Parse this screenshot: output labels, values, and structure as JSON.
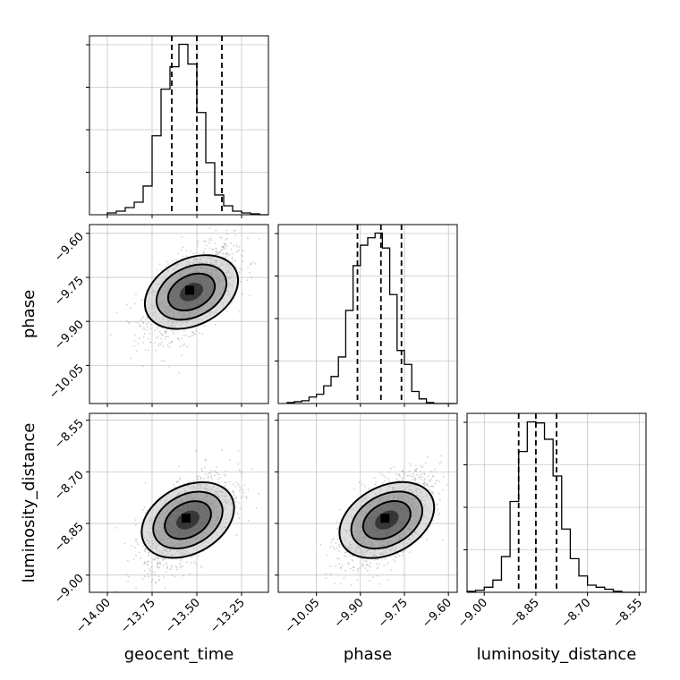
{
  "chart_data": {
    "type": "corner",
    "parameters": [
      {
        "key": "geocent_time",
        "label": "geocent_time",
        "range": [
          -14.1,
          -13.1
        ],
        "ticks": [
          -14.0,
          -13.75,
          -13.5,
          -13.25
        ],
        "tick_labels": [
          "−14.00",
          "−13.75",
          "−13.50",
          "−13.25"
        ],
        "quantiles": [
          -13.64,
          -13.5,
          -13.36
        ]
      },
      {
        "key": "phase",
        "label": "phase",
        "range": [
          -10.18,
          -9.57
        ],
        "ticks": [
          -10.05,
          -9.9,
          -9.75,
          -9.6
        ],
        "tick_labels": [
          "−10.05",
          "−9.90",
          "−9.75",
          "−9.60"
        ],
        "quantiles": [
          -9.91,
          -9.83,
          -9.76
        ]
      },
      {
        "key": "luminosity_distance",
        "label": "luminosity_distance",
        "range": [
          -9.05,
          -8.53
        ],
        "ticks": [
          -9.0,
          -8.85,
          -8.7,
          -8.55
        ],
        "tick_labels": [
          "−9.00",
          "−8.85",
          "−8.70",
          "−8.55"
        ],
        "quantiles": [
          -8.9,
          -8.85,
          -8.79
        ]
      }
    ],
    "histograms": [
      {
        "param": "geocent_time",
        "bin_edges": [
          -14.0,
          -13.95,
          -13.9,
          -13.85,
          -13.8,
          -13.75,
          -13.7,
          -13.65,
          -13.6,
          -13.55,
          -13.5,
          -13.45,
          -13.4,
          -13.35,
          -13.3,
          -13.25,
          -13.2,
          -13.15,
          -13.1
        ],
        "counts": [
          2,
          4,
          8,
          14,
          32,
          88,
          140,
          165,
          190,
          168,
          114,
          58,
          22,
          10,
          4,
          2,
          1,
          0
        ]
      },
      {
        "param": "phase",
        "bin_edges": [
          -10.15,
          -10.125,
          -10.1,
          -10.075,
          -10.05,
          -10.025,
          -10.0,
          -9.975,
          -9.95,
          -9.925,
          -9.9,
          -9.875,
          -9.85,
          -9.825,
          -9.8,
          -9.775,
          -9.75,
          -9.725,
          -9.7,
          -9.675,
          -9.65,
          -9.625,
          -9.6,
          -9.575
        ],
        "counts": [
          1,
          2,
          3,
          7,
          10,
          19,
          29,
          50,
          100,
          148,
          170,
          178,
          183,
          167,
          117,
          57,
          42,
          13,
          5,
          1,
          0,
          0,
          0
        ]
      },
      {
        "param": "luminosity_distance",
        "bin_edges": [
          -9.05,
          -9.025,
          -9.0,
          -8.975,
          -8.95,
          -8.925,
          -8.9,
          -8.875,
          -8.85,
          -8.825,
          -8.8,
          -8.775,
          -8.75,
          -8.725,
          -8.7,
          -8.675,
          -8.65,
          -8.625,
          -8.6,
          -8.575,
          -8.55
        ],
        "counts": [
          1,
          2,
          5,
          12,
          35,
          89,
          138,
          167,
          166,
          150,
          114,
          62,
          33,
          16,
          7,
          5,
          3,
          1,
          0,
          0
        ]
      }
    ],
    "scatter_2d": [
      {
        "x": "geocent_time",
        "y": "phase",
        "center": [
          -13.53,
          -9.8
        ],
        "sigma": [
          0.12,
          0.075
        ],
        "corr": 0.55
      },
      {
        "x": "geocent_time",
        "y": "luminosity_distance",
        "center": [
          -13.55,
          -8.84
        ],
        "sigma": [
          0.12,
          0.065
        ],
        "corr": 0.6
      },
      {
        "x": "phase",
        "y": "luminosity_distance",
        "center": [
          -9.81,
          -8.84
        ],
        "sigma": [
          0.075,
          0.065
        ],
        "corr": 0.6
      }
    ],
    "contour_levels_sigma": [
      0.5,
      1.0,
      1.5,
      2.0
    ],
    "grid": true,
    "xlabel_rotation_deg": 45,
    "colors": {
      "line": "#000000",
      "grid": "#b0b0b0",
      "scatter": "#9a9a9a",
      "background": "#ffffff"
    }
  }
}
